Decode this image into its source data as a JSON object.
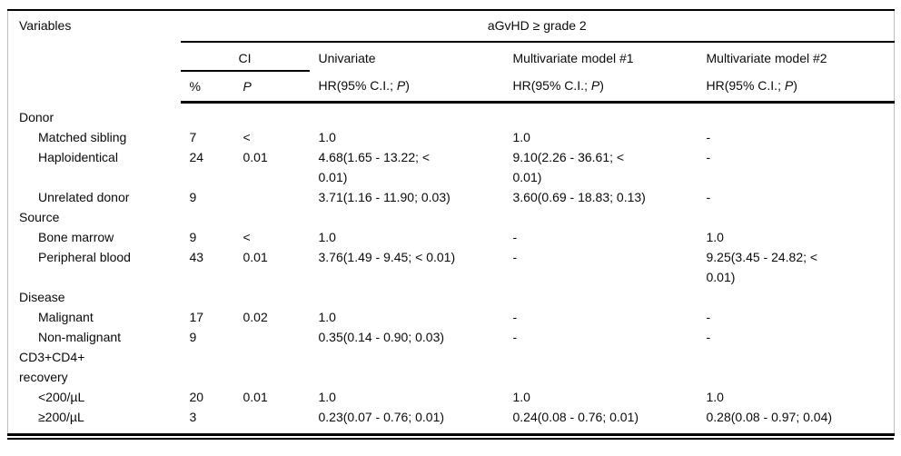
{
  "table": {
    "corner_label": "Variables",
    "span_header": "aGvHD ≥ grade 2",
    "group_ci_label": "CI",
    "columns": {
      "univariate": "Univariate",
      "multivariate1": "Multivariate model #1",
      "multivariate2": "Multivariate model #2",
      "pct": "%",
      "p": "P",
      "hr_prefix": "HR(95% C.I.; ",
      "hr_p": "P",
      "hr_suffix": ")"
    },
    "rows": [
      {
        "label": "Donor",
        "section": true
      },
      {
        "label": "Matched sibling",
        "pct": "7",
        "p": "<\n0.01",
        "uni": "1.0",
        "m1": "1.0",
        "m2": "-"
      },
      {
        "label": "Haploidentical",
        "pct": "24",
        "uni": "4.68(1.65 - 13.22; <\n0.01)",
        "m1": "9.10(2.26 - 36.61; <\n0.01)",
        "m2": "-"
      },
      {
        "label": "Unrelated donor",
        "pct": "9",
        "p": "",
        "uni": "3.71(1.16 - 11.90; 0.03)",
        "m1": "3.60(0.69 - 18.83; 0.13)",
        "m2": "-"
      },
      {
        "label": "Source",
        "section": true
      },
      {
        "label": "Bone marrow",
        "pct": "9",
        "p": "<\n0.01",
        "uni": "1.0",
        "m1": "-",
        "m2": "1.0"
      },
      {
        "label": "Peripheral blood",
        "pct": "43",
        "uni": "3.76(1.49 - 9.45; < 0.01)",
        "m1": "-",
        "m2": "9.25(3.45 - 24.82; <\n0.01)"
      },
      {
        "label": "Disease",
        "section": true
      },
      {
        "label": "Malignant",
        "pct": "17",
        "p": "0.02",
        "uni": "1.0",
        "m1": "-",
        "m2": "-"
      },
      {
        "label": "Non-malignant",
        "pct": "9",
        "p": "",
        "uni": "0.35(0.14 - 0.90; 0.03)",
        "m1": "-",
        "m2": "-"
      },
      {
        "label": "CD3+CD4+\nrecovery",
        "section": true
      },
      {
        "label": "<200/µL",
        "pct": "20",
        "p": "0.01",
        "uni": "1.0",
        "m1": "1.0",
        "m2": "1.0"
      },
      {
        "label": "≥200/µL",
        "pct": "3",
        "p": "",
        "uni": "0.23(0.07 - 0.76; 0.01)",
        "m1": "0.24(0.08 - 0.76; 0.01)",
        "m2": "0.28(0.08 - 0.97; 0.04)"
      }
    ]
  }
}
